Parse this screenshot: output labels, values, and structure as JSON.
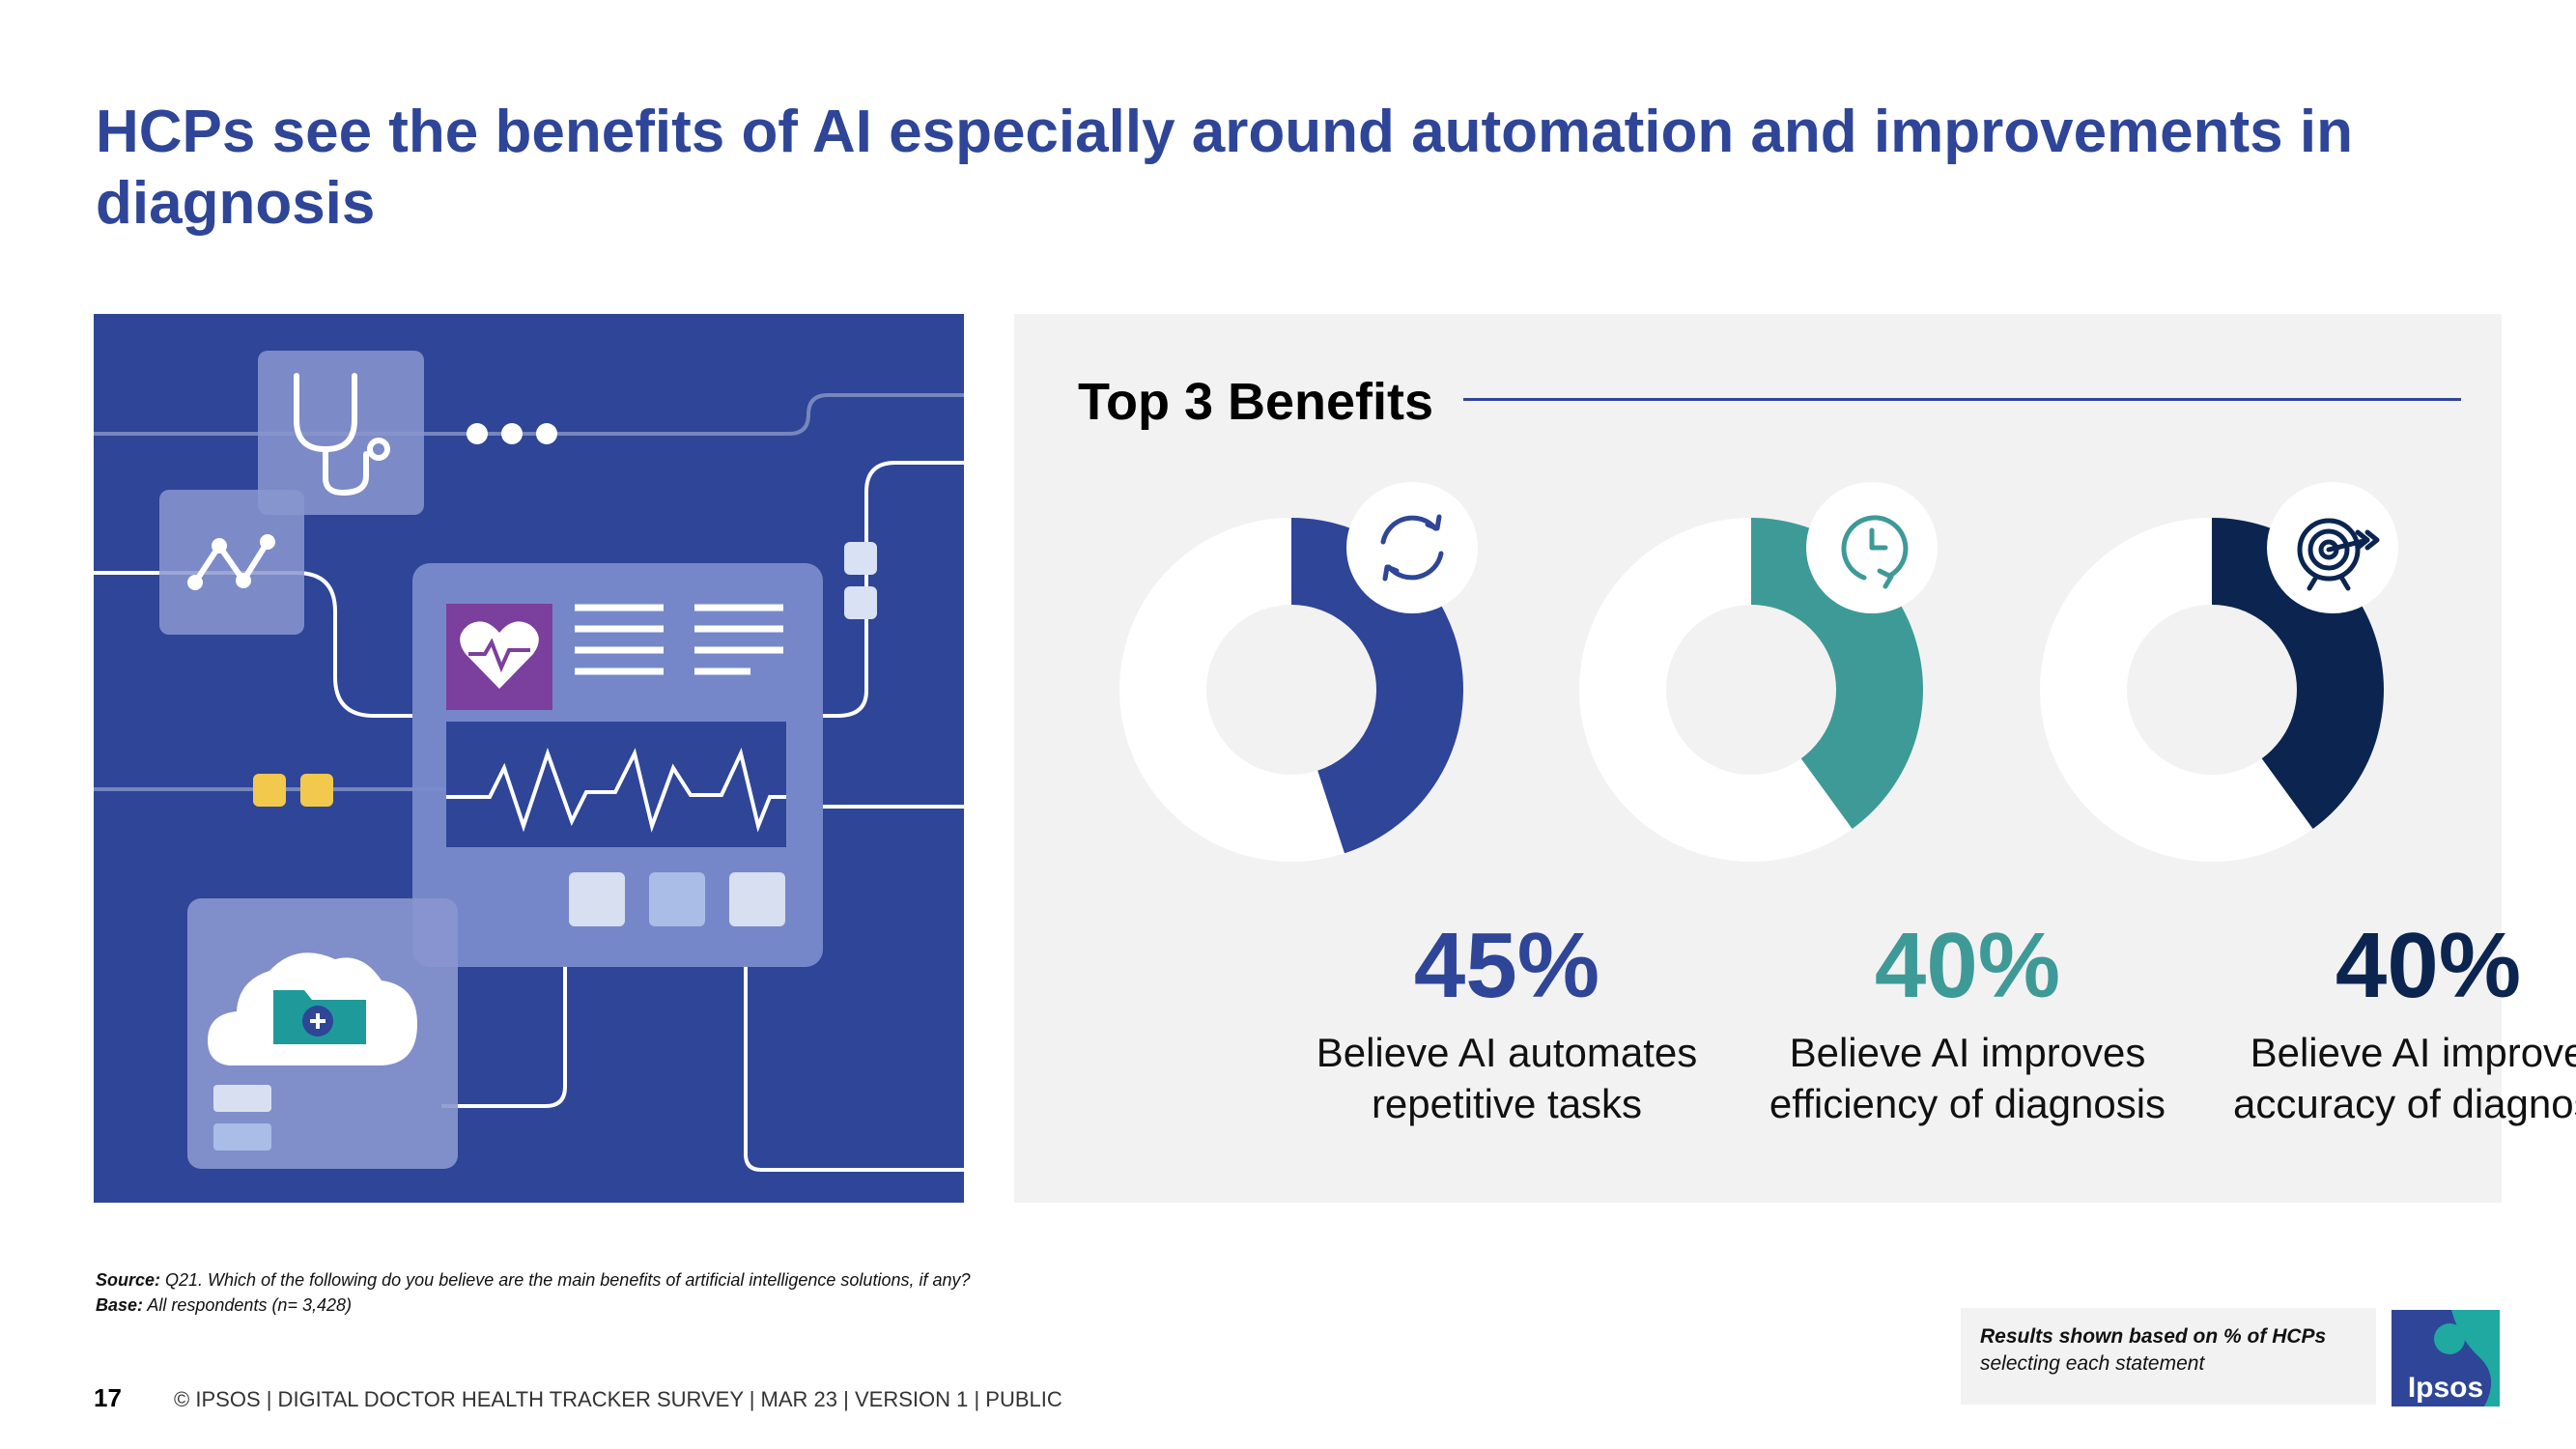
{
  "slide": {
    "title": "HCPs see the benefits of AI especially around automation and improvements in diagnosis",
    "page_number": "17",
    "footer_text": "© IPSOS | DIGITAL DOCTOR HEALTH TRACKER SURVEY | MAR 23 | VERSION 1 | PUBLIC"
  },
  "source": {
    "source_label": "Source:",
    "source_text": " Q21. Which of the following do you believe are the main benefits of artificial intelligence solutions, if any?",
    "base_label": "Base:",
    "base_text": " All respondents (n= 3,428)"
  },
  "note": {
    "bold_text": "Results shown based on % of HCPs",
    "text": "selecting each statement"
  },
  "logo": {
    "text": "Ipsos"
  },
  "colors": {
    "brand_blue": "#2e4598",
    "teal": "#3e9a97",
    "navy": "#0b2550",
    "panel_bg": "#f2f2f2"
  },
  "chart_data": {
    "type": "pie",
    "title": "Top 3 Benefits",
    "unit": "%",
    "series": [
      {
        "label": "45%",
        "value": 45,
        "description": "Believe AI automates repetitive tasks",
        "color": "#2e4598",
        "icon": "refresh-icon"
      },
      {
        "label": "40%",
        "value": 40,
        "description": "Believe AI improves efficiency of diagnosis",
        "color": "#3e9a97",
        "icon": "clock-icon"
      },
      {
        "label": "40%",
        "value": 40,
        "description": "Believe AI improves accuracy of diagnosis",
        "color": "#0b2550",
        "icon": "target-icon"
      }
    ]
  }
}
